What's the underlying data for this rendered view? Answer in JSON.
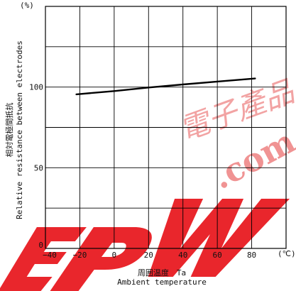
{
  "chart_data": {
    "type": "line",
    "ylabel_unit": "(%)",
    "xlabel_unit": "(℃)",
    "xlabel_line1": "周囲温度　Ta",
    "xlabel_line2": "Ambient temperature",
    "ylabel_line1": "相対電極間抵抗",
    "ylabel_line2": "Relative resistance between electrodes",
    "xlim": [
      -40,
      100
    ],
    "ylim": [
      0,
      150
    ],
    "x_ticks": [
      -40,
      -20,
      0,
      20,
      40,
      60,
      80
    ],
    "x_tick_labels": [
      "−40",
      "−20",
      "0",
      "20",
      "40",
      "60",
      "80"
    ],
    "y_ticks": [
      0,
      50,
      100
    ],
    "y_tick_labels": [
      "0",
      "50",
      "100"
    ],
    "grid": true,
    "series": [
      {
        "x": [
          -22,
          0,
          20,
          40,
          60,
          82
        ],
        "y": [
          95.5,
          97.5,
          99.7,
          101.6,
          103.4,
          105.3
        ],
        "color": "#000000"
      }
    ]
  },
  "watermark": {
    "text": "EPW",
    "color": "#e8141b",
    "light_color": "#ef8a8a",
    "domain_text": ".com",
    "chinese_text": "電子產品"
  }
}
